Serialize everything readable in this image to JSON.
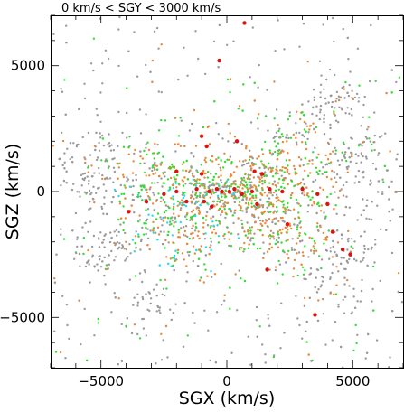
{
  "chart_data": {
    "type": "scatter",
    "title": "0 km/s < SGY < 3000 km/s",
    "xlabel": "SGX (km/s)",
    "ylabel": "SGZ (km/s)",
    "xlim": [
      -7000,
      7000
    ],
    "ylim": [
      -7000,
      7000
    ],
    "x_ticks": [
      -5000,
      0,
      5000
    ],
    "x_tick_labels": [
      "−5000",
      "0",
      "5000"
    ],
    "y_ticks": [
      -5000,
      0,
      5000
    ],
    "y_tick_labels": [
      "−5000",
      "0",
      "5000"
    ],
    "colors": {
      "gray": "#9a9a9a",
      "orange": "#e8893c",
      "green": "#33dd33",
      "cyan": "#22ddee",
      "red": "#dd1111"
    },
    "series": [
      {
        "color": "#dd1111",
        "points": [
          [
            700,
            6700
          ],
          [
            -300,
            5200
          ],
          [
            -1000,
            2200
          ],
          [
            -800,
            1800
          ],
          [
            400,
            2000
          ],
          [
            -2000,
            800
          ],
          [
            -1000,
            700
          ],
          [
            1100,
            800
          ],
          [
            1400,
            700
          ],
          [
            -3900,
            -800
          ],
          [
            -3200,
            -400
          ],
          [
            -2500,
            -100
          ],
          [
            -2000,
            0
          ],
          [
            -1200,
            100
          ],
          [
            -700,
            0
          ],
          [
            -400,
            100
          ],
          [
            -200,
            0
          ],
          [
            100,
            0
          ],
          [
            300,
            100
          ],
          [
            600,
            -100
          ],
          [
            1000,
            0
          ],
          [
            1700,
            100
          ],
          [
            2200,
            0
          ],
          [
            3000,
            100
          ],
          [
            3600,
            -100
          ],
          [
            4000,
            -500
          ],
          [
            -1600,
            -400
          ],
          [
            -600,
            -600
          ],
          [
            1200,
            -500
          ],
          [
            2400,
            -1300
          ],
          [
            4200,
            -1600
          ],
          [
            4600,
            -2300
          ],
          [
            4900,
            -2500
          ],
          [
            1600,
            -3100
          ],
          [
            3500,
            -4900
          ],
          [
            -900,
            -400
          ]
        ]
      }
    ]
  }
}
